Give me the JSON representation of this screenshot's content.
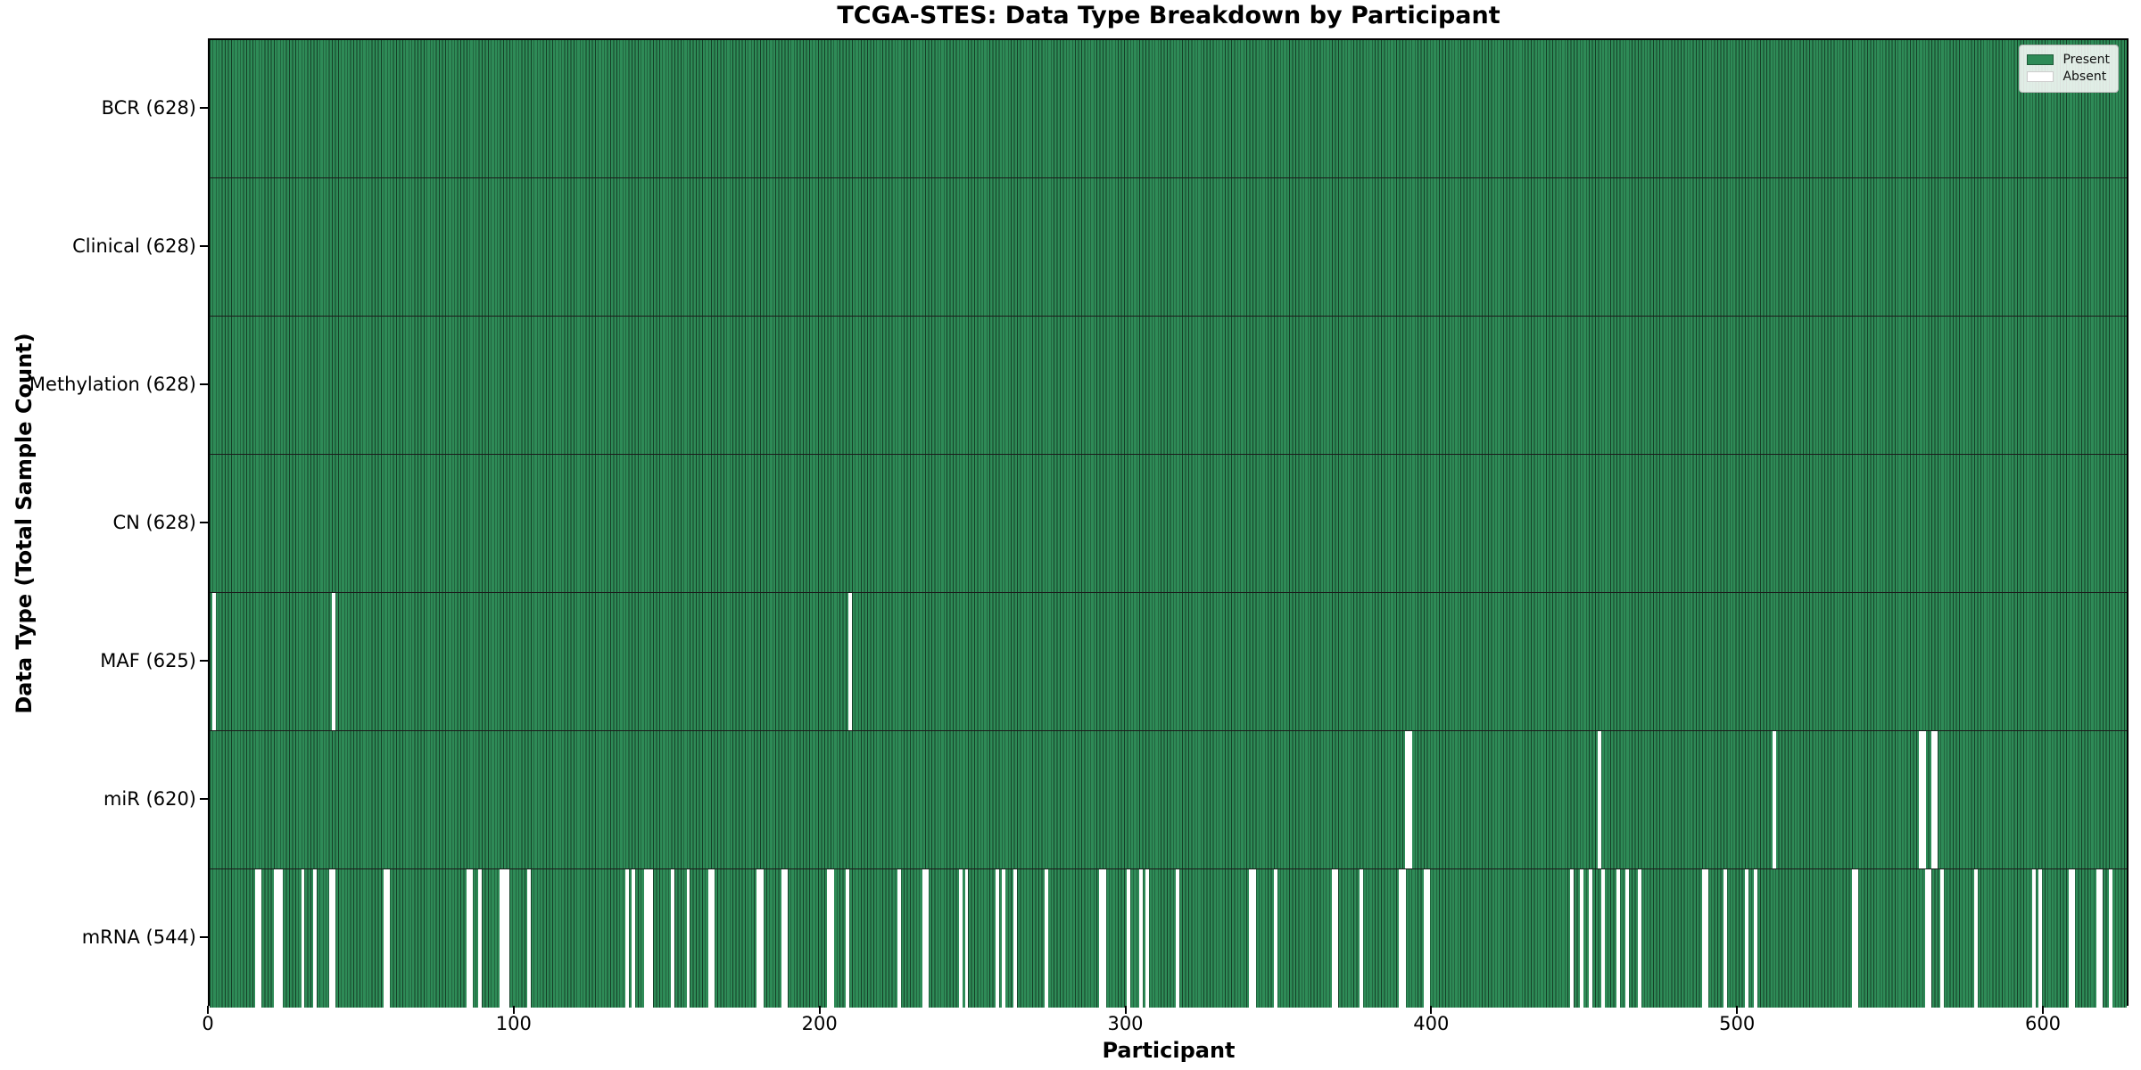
{
  "title": "TCGA-STES: Data Type Breakdown by Participant",
  "xlabel": "Participant",
  "ylabel": "Data Type (Total Sample Count)",
  "legend": {
    "present_label": "Present",
    "absent_label": "Absent"
  },
  "colors": {
    "present": "#2e8b57",
    "absent": "#ffffff",
    "bar_edge": "rgba(0,0,0,0.55)"
  },
  "chart_data": {
    "type": "heatmap",
    "title": "TCGA-STES: Data Type Breakdown by Participant",
    "xlabel": "Participant",
    "ylabel": "Data Type (Total Sample Count)",
    "x_ticks": [
      0,
      100,
      200,
      300,
      400,
      500,
      600
    ],
    "n_participants": 628,
    "legend_entries": [
      "Present",
      "Absent"
    ],
    "legend_position": "upper right",
    "rows": [
      {
        "name": "BCR",
        "label": "BCR (628)",
        "total": 628,
        "absent": []
      },
      {
        "name": "Clinical",
        "label": "Clinical (628)",
        "total": 628,
        "absent": []
      },
      {
        "name": "Methylation",
        "label": "Methylation (628)",
        "total": 628,
        "absent": []
      },
      {
        "name": "CN",
        "label": "CN (628)",
        "total": 628,
        "absent": []
      },
      {
        "name": "MAF",
        "label": "MAF (625)",
        "total": 625,
        "absent": [
          1,
          40,
          209
        ]
      },
      {
        "name": "miR",
        "label": "miR (620)",
        "total": 620,
        "absent": [
          391,
          392,
          454,
          511,
          559,
          560,
          563,
          564
        ]
      },
      {
        "name": "mRNA",
        "label": "mRNA (544)",
        "total": 544,
        "absent": [
          15,
          16,
          21,
          22,
          23,
          30,
          34,
          39,
          40,
          57,
          58,
          84,
          85,
          88,
          95,
          96,
          97,
          104,
          136,
          138,
          142,
          143,
          144,
          151,
          156,
          163,
          164,
          179,
          180,
          187,
          188,
          202,
          203,
          208,
          225,
          233,
          234,
          245,
          247,
          257,
          259,
          263,
          273,
          291,
          292,
          300,
          304,
          306,
          316,
          340,
          341,
          348,
          367,
          368,
          376,
          389,
          390,
          397,
          398,
          445,
          448,
          451,
          455,
          460,
          463,
          467,
          488,
          489,
          495,
          502,
          505,
          537,
          538,
          561,
          562,
          566,
          577,
          596,
          598,
          608,
          609,
          617,
          618,
          621
        ]
      }
    ]
  }
}
